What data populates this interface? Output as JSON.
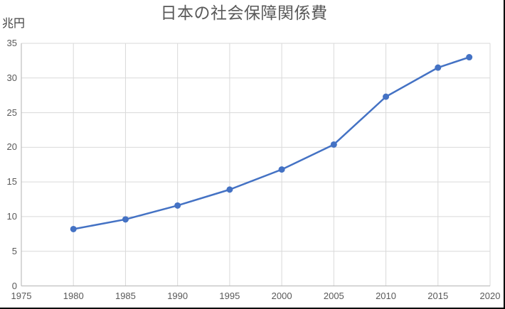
{
  "chart_data": {
    "type": "line",
    "title": "日本の社会保障関係費",
    "ylabel": "兆円",
    "xlabel": "",
    "x": [
      1980,
      1985,
      1990,
      1995,
      2000,
      2005,
      2010,
      2015,
      2018
    ],
    "values": [
      8.2,
      9.6,
      11.6,
      13.9,
      16.8,
      20.4,
      27.3,
      31.5,
      33.0
    ],
    "xlim": [
      1975,
      2020
    ],
    "ylim": [
      0,
      35
    ],
    "x_tick_step": 5,
    "y_tick_step": 5,
    "x_ticks": [
      "1975",
      "1980",
      "1985",
      "1990",
      "1995",
      "2000",
      "2005",
      "2010",
      "2015",
      "2020"
    ],
    "y_ticks": [
      "0",
      "5",
      "10",
      "15",
      "20",
      "25",
      "30",
      "35"
    ],
    "grid": true,
    "legend": "none",
    "colors": {
      "line": "#4472C4",
      "marker": "#4472C4",
      "gridline": "#D9D9D9",
      "axis": "#BFBFBF",
      "title_text": "#595959",
      "tick_text": "#595959",
      "unit_text": "#404040",
      "background": "#FFFFFF",
      "frame_border": "#000000"
    }
  }
}
